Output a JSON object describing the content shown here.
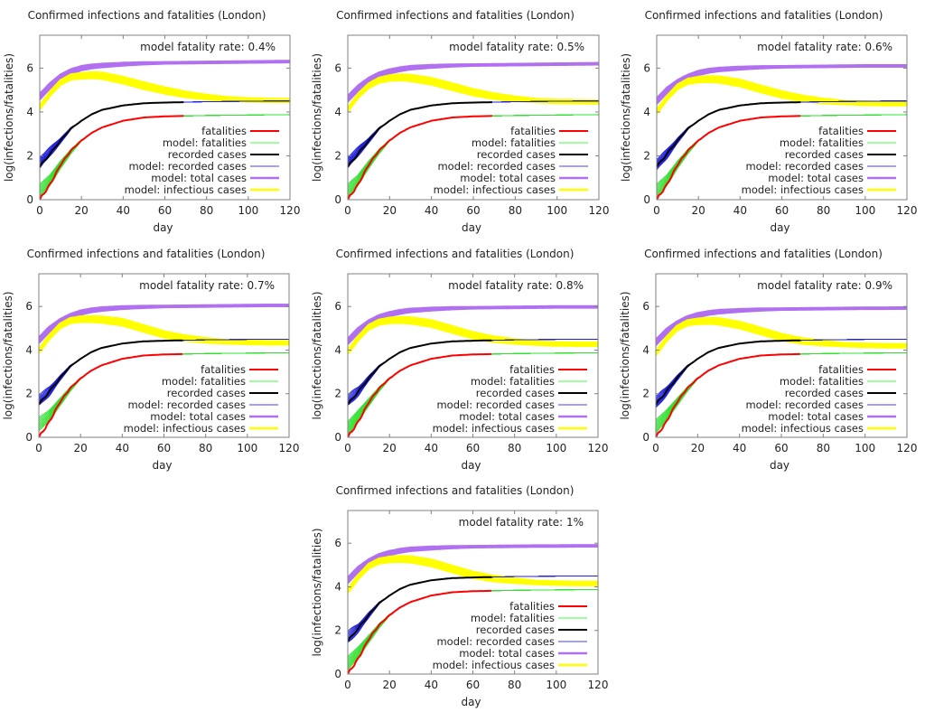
{
  "chart_data": {
    "type": "line",
    "layout": "grid of 7 panels (3 rows: 3, 3, 1 centered)",
    "days": [
      0,
      5,
      10,
      15,
      20,
      25,
      30,
      40,
      50,
      60,
      70,
      80,
      90,
      100,
      110,
      120
    ],
    "shared": {
      "title": "Confirmed infections and fatalities (London)",
      "xlabel": "day",
      "ylabel": "log(infections/fatalities)",
      "xlim": [
        0,
        120
      ],
      "ylim": [
        0,
        7.5
      ],
      "xticks": [
        0,
        20,
        40,
        60,
        80,
        100,
        120
      ],
      "yticks": [
        0,
        2,
        4,
        6
      ],
      "grid": false,
      "legend_position": "bottom-right",
      "legend": [
        {
          "key": "fatalities",
          "label": "fatalities",
          "color": "#ff0000"
        },
        {
          "key": "model_fatalities",
          "label": "model: fatalities",
          "color": "#80ff80"
        },
        {
          "key": "recorded",
          "label": "recorded cases",
          "color": "#000000"
        },
        {
          "key": "model_recorded",
          "label": "model: recorded cases",
          "color": "#8080ff"
        },
        {
          "key": "model_total",
          "label": "model: total cases",
          "color": "#b070f0"
        },
        {
          "key": "model_infectious",
          "label": "model: infectious cases",
          "color": "#ffff00"
        }
      ],
      "observed_last_day": 69,
      "recorded_cases": [
        1.5,
        2.1,
        2.7,
        3.25,
        3.6,
        3.9,
        4.1,
        4.3,
        4.4,
        4.43,
        4.45
      ],
      "fatalities": [
        0.0,
        0.7,
        1.6,
        2.25,
        2.7,
        3.05,
        3.3,
        3.6,
        3.75,
        3.8,
        3.82
      ]
    },
    "panels": [
      {
        "annotation": "model fatality rate: 0.4%",
        "fatality_rate": 0.4,
        "model_total": [
          4.7,
          5.2,
          5.6,
          5.85,
          6.0,
          6.08,
          6.12,
          6.18,
          6.22,
          6.24,
          6.25,
          6.26,
          6.27,
          6.28,
          6.29,
          6.3
        ],
        "model_infectious": [
          4.2,
          4.85,
          5.35,
          5.6,
          5.65,
          5.68,
          5.65,
          5.45,
          5.2,
          4.98,
          4.8,
          4.68,
          4.6,
          4.55,
          4.53,
          4.52
        ],
        "model_recorded": [
          1.7,
          2.2,
          2.7,
          3.25,
          3.6,
          3.9,
          4.1,
          4.3,
          4.4,
          4.43,
          4.45,
          4.47,
          4.48,
          4.49,
          4.5,
          4.5
        ],
        "model_fatalities": [
          0.4,
          0.9,
          1.6,
          2.2,
          2.7,
          3.05,
          3.3,
          3.6,
          3.75,
          3.8,
          3.82,
          3.84,
          3.85,
          3.86,
          3.87,
          3.88
        ]
      },
      {
        "annotation": "model fatality rate: 0.5%",
        "fatality_rate": 0.5,
        "model_total": [
          4.6,
          5.1,
          5.45,
          5.7,
          5.85,
          5.95,
          6.02,
          6.08,
          6.12,
          6.14,
          6.15,
          6.16,
          6.17,
          6.18,
          6.19,
          6.2
        ],
        "model_infectious": [
          4.1,
          4.75,
          5.2,
          5.45,
          5.55,
          5.58,
          5.55,
          5.4,
          5.15,
          4.9,
          4.72,
          4.6,
          4.52,
          4.48,
          4.47,
          4.46
        ],
        "model_recorded": [
          1.7,
          2.2,
          2.7,
          3.25,
          3.6,
          3.9,
          4.1,
          4.3,
          4.4,
          4.43,
          4.45,
          4.47,
          4.48,
          4.49,
          4.5,
          4.5
        ],
        "model_fatalities": [
          0.4,
          0.9,
          1.6,
          2.2,
          2.7,
          3.05,
          3.3,
          3.6,
          3.75,
          3.8,
          3.82,
          3.84,
          3.85,
          3.86,
          3.87,
          3.88
        ]
      },
      {
        "annotation": "model fatality rate: 0.6%",
        "fatality_rate": 0.6,
        "model_total": [
          4.5,
          5.0,
          5.35,
          5.6,
          5.78,
          5.88,
          5.94,
          6.0,
          6.04,
          6.06,
          6.07,
          6.08,
          6.09,
          6.1,
          6.1,
          6.1
        ],
        "model_infectious": [
          4.0,
          4.65,
          5.15,
          5.4,
          5.48,
          5.5,
          5.48,
          5.32,
          5.05,
          4.8,
          4.62,
          4.5,
          4.43,
          4.4,
          4.38,
          4.38
        ],
        "model_recorded": [
          1.6,
          2.1,
          2.7,
          3.25,
          3.6,
          3.9,
          4.1,
          4.3,
          4.4,
          4.43,
          4.45,
          4.47,
          4.48,
          4.49,
          4.5,
          4.5
        ],
        "model_fatalities": [
          0.4,
          0.9,
          1.6,
          2.2,
          2.7,
          3.05,
          3.3,
          3.6,
          3.75,
          3.8,
          3.82,
          3.84,
          3.85,
          3.86,
          3.87,
          3.88
        ]
      },
      {
        "annotation": "model fatality rate: 0.7%",
        "fatality_rate": 0.7,
        "model_total": [
          4.45,
          4.95,
          5.3,
          5.55,
          5.72,
          5.82,
          5.88,
          5.95,
          5.98,
          6.0,
          6.01,
          6.02,
          6.03,
          6.04,
          6.05,
          6.05
        ],
        "model_infectious": [
          3.95,
          4.6,
          5.1,
          5.35,
          5.42,
          5.42,
          5.4,
          5.28,
          5.0,
          4.72,
          4.55,
          4.45,
          4.38,
          4.35,
          4.33,
          4.33
        ],
        "model_recorded": [
          1.7,
          2.1,
          2.7,
          3.25,
          3.6,
          3.9,
          4.1,
          4.3,
          4.4,
          4.43,
          4.45,
          4.47,
          4.48,
          4.49,
          4.5,
          4.5
        ],
        "model_fatalities": [
          0.6,
          1.0,
          1.6,
          2.2,
          2.7,
          3.05,
          3.3,
          3.6,
          3.75,
          3.8,
          3.82,
          3.84,
          3.85,
          3.86,
          3.87,
          3.88
        ]
      },
      {
        "annotation": "model fatality rate: 0.8%",
        "fatality_rate": 0.8,
        "model_total": [
          4.4,
          4.9,
          5.25,
          5.5,
          5.65,
          5.75,
          5.82,
          5.88,
          5.92,
          5.94,
          5.95,
          5.96,
          5.97,
          5.98,
          5.98,
          5.98
        ],
        "model_infectious": [
          3.9,
          4.55,
          5.05,
          5.28,
          5.36,
          5.38,
          5.36,
          5.22,
          4.95,
          4.68,
          4.5,
          4.4,
          4.32,
          4.28,
          4.27,
          4.27
        ],
        "model_recorded": [
          1.7,
          2.1,
          2.7,
          3.25,
          3.6,
          3.9,
          4.1,
          4.3,
          4.4,
          4.43,
          4.45,
          4.47,
          4.48,
          4.49,
          4.5,
          4.5
        ],
        "model_fatalities": [
          0.4,
          1.0,
          1.6,
          2.2,
          2.7,
          3.05,
          3.3,
          3.6,
          3.75,
          3.8,
          3.82,
          3.84,
          3.85,
          3.86,
          3.87,
          3.88
        ]
      },
      {
        "annotation": "model fatality rate: 0.9%",
        "fatality_rate": 0.9,
        "model_total": [
          4.35,
          4.85,
          5.2,
          5.45,
          5.6,
          5.7,
          5.76,
          5.82,
          5.86,
          5.88,
          5.89,
          5.9,
          5.91,
          5.92,
          5.92,
          5.93
        ],
        "model_infectious": [
          3.85,
          4.5,
          5.0,
          5.25,
          5.32,
          5.34,
          5.32,
          5.15,
          4.88,
          4.6,
          4.42,
          4.32,
          4.25,
          4.22,
          4.2,
          4.2
        ],
        "model_recorded": [
          1.6,
          2.1,
          2.7,
          3.25,
          3.6,
          3.9,
          4.1,
          4.3,
          4.4,
          4.43,
          4.45,
          4.47,
          4.48,
          4.49,
          4.5,
          4.5
        ],
        "model_fatalities": [
          0.5,
          1.0,
          1.6,
          2.2,
          2.7,
          3.05,
          3.3,
          3.6,
          3.75,
          3.8,
          3.82,
          3.84,
          3.85,
          3.86,
          3.87,
          3.88
        ]
      },
      {
        "annotation": "model fatality rate: 1%",
        "fatality_rate": 1.0,
        "model_total": [
          4.3,
          4.8,
          5.15,
          5.4,
          5.55,
          5.65,
          5.72,
          5.78,
          5.82,
          5.84,
          5.85,
          5.86,
          5.87,
          5.87,
          5.88,
          5.88
        ],
        "model_infectious": [
          3.8,
          4.45,
          4.95,
          5.18,
          5.26,
          5.28,
          5.26,
          5.1,
          4.82,
          4.55,
          4.38,
          4.28,
          4.2,
          4.17,
          4.15,
          4.15
        ],
        "model_recorded": [
          1.7,
          2.1,
          2.7,
          3.25,
          3.6,
          3.9,
          4.1,
          4.3,
          4.4,
          4.43,
          4.45,
          4.47,
          4.48,
          4.49,
          4.5,
          4.5
        ],
        "model_fatalities": [
          0.5,
          1.0,
          1.6,
          2.2,
          2.7,
          3.05,
          3.3,
          3.6,
          3.75,
          3.8,
          3.82,
          3.84,
          3.85,
          3.86,
          3.87,
          3.88
        ]
      }
    ]
  }
}
